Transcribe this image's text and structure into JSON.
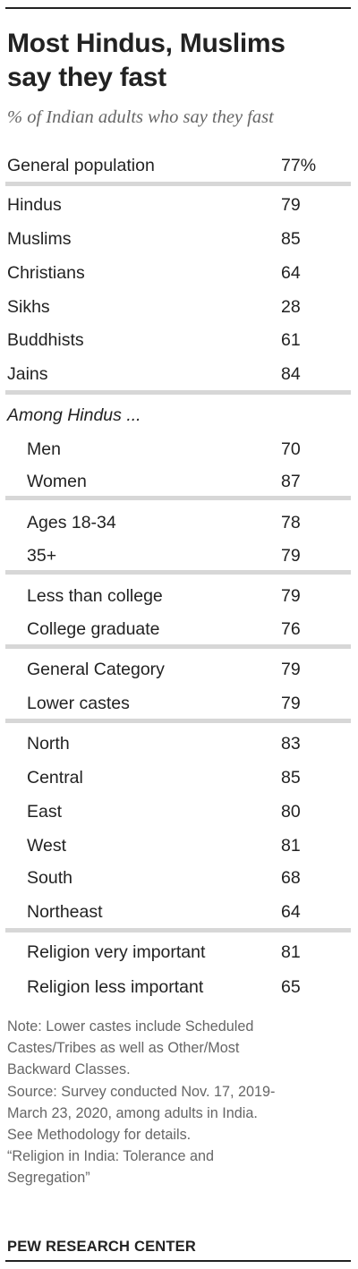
{
  "title_lines": [
    "Most Hindus, Muslims",
    "say they fast"
  ],
  "subtitle": "% of Indian adults who say they fast",
  "chart_data": {
    "type": "table",
    "title": "Most Hindus, Muslims say they fast",
    "subtitle": "% of Indian adults who say they fast",
    "group_header": "Among Hindus ...",
    "rows": [
      {
        "label": "General population",
        "value": "77%",
        "group": "overall"
      },
      {
        "label": "Hindus",
        "value": "79",
        "group": "religion"
      },
      {
        "label": "Muslims",
        "value": "85",
        "group": "religion"
      },
      {
        "label": "Christians",
        "value": "64",
        "group": "religion"
      },
      {
        "label": "Sikhs",
        "value": "28",
        "group": "religion"
      },
      {
        "label": "Buddhists",
        "value": "61",
        "group": "religion"
      },
      {
        "label": "Jains",
        "value": "84",
        "group": "religion"
      },
      {
        "label": "Men",
        "value": "70",
        "group": "hindus-gender"
      },
      {
        "label": "Women",
        "value": "87",
        "group": "hindus-gender"
      },
      {
        "label": "Ages 18-34",
        "value": "78",
        "group": "hindus-age"
      },
      {
        "label": "35+",
        "value": "79",
        "group": "hindus-age"
      },
      {
        "label": "Less than college",
        "value": "79",
        "group": "hindus-education"
      },
      {
        "label": "College graduate",
        "value": "76",
        "group": "hindus-education"
      },
      {
        "label": "General Category",
        "value": "79",
        "group": "hindus-caste"
      },
      {
        "label": "Lower castes",
        "value": "79",
        "group": "hindus-caste"
      },
      {
        "label": "North",
        "value": "83",
        "group": "hindus-region"
      },
      {
        "label": "Central",
        "value": "85",
        "group": "hindus-region"
      },
      {
        "label": "East",
        "value": "80",
        "group": "hindus-region"
      },
      {
        "label": "West",
        "value": "81",
        "group": "hindus-region"
      },
      {
        "label": "South",
        "value": "68",
        "group": "hindus-region"
      },
      {
        "label": "Northeast",
        "value": "64",
        "group": "hindus-region"
      },
      {
        "label": "Religion very important",
        "value": "81",
        "group": "hindus-importance"
      },
      {
        "label": "Religion less important",
        "value": "65",
        "group": "hindus-importance"
      }
    ]
  },
  "note_lines": [
    "Note: Lower castes include Scheduled",
    "Castes/Tribes as well as Other/Most",
    "Backward Classes.",
    "Source: Survey conducted Nov. 17, 2019-",
    "March 23, 2020, among adults in India.",
    "See Methodology for details.",
    "“Religion in India: Tolerance and",
    "Segregation”"
  ],
  "footer": "PEW RESEARCH CENTER"
}
